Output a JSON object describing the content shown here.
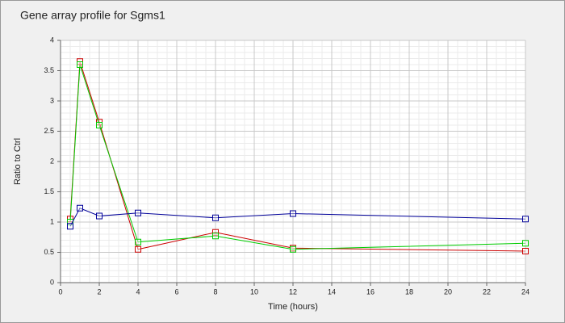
{
  "chart_data": {
    "type": "line",
    "title": "Gene array profile for Sgms1",
    "x_label": "Time (hours)",
    "y_label": "Ratio to Ctrl",
    "x": [
      0.5,
      1,
      2,
      4,
      8,
      12,
      24
    ],
    "series": [
      {
        "color": "#cc0000",
        "values": [
          1.05,
          3.65,
          2.65,
          0.55,
          0.83,
          0.57,
          0.52
        ]
      },
      {
        "color": "#00cc00",
        "values": [
          1.0,
          3.6,
          2.6,
          0.67,
          0.77,
          0.55,
          0.65
        ]
      },
      {
        "color": "#000099",
        "values": [
          0.93,
          1.23,
          1.1,
          1.15,
          1.07,
          1.14,
          1.05
        ]
      }
    ],
    "xlim": [
      0,
      24
    ],
    "xticks": [
      0,
      2,
      4,
      6,
      8,
      10,
      12,
      14,
      16,
      18,
      20,
      22,
      24
    ],
    "ylim": [
      0,
      4
    ],
    "yticks": [
      0,
      0.5,
      1,
      1.5,
      2,
      2.5,
      3,
      3.5,
      4
    ],
    "grid": true
  }
}
